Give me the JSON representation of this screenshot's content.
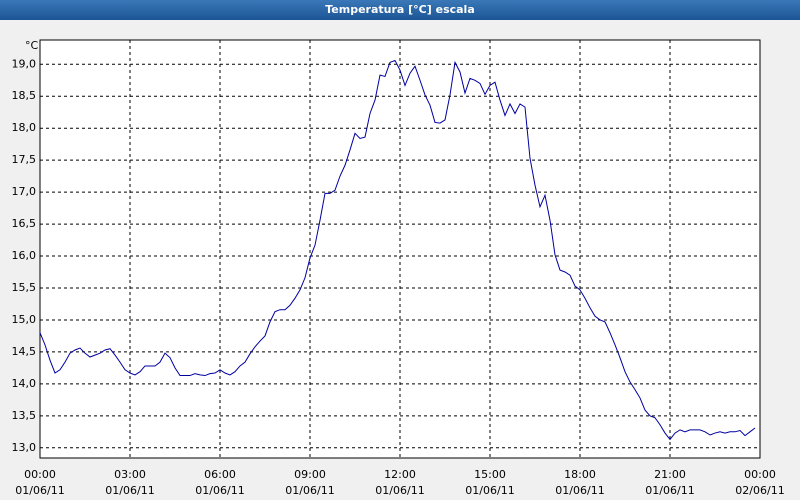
{
  "window_title": "Temperatura [°C] escala",
  "chart_data": {
    "type": "line",
    "y_unit": "°C",
    "x": [
      0,
      10,
      20,
      30,
      40,
      50,
      60,
      70,
      80,
      90,
      100,
      110,
      120,
      130,
      140,
      150,
      160,
      170,
      180,
      190,
      200,
      210,
      220,
      230,
      240,
      250,
      260,
      270,
      280,
      290,
      300,
      310,
      320,
      330,
      340,
      350,
      360,
      370,
      380,
      390,
      400,
      410,
      420,
      430,
      440,
      450,
      460,
      470,
      480,
      490,
      500,
      510,
      520,
      530,
      540,
      550,
      560,
      570,
      580,
      590,
      600,
      610,
      620,
      630,
      640,
      650,
      660,
      670,
      680,
      690,
      700,
      710,
      720,
      730,
      740,
      750,
      760,
      770,
      780,
      790,
      800,
      810,
      820,
      830,
      840,
      850,
      860,
      870,
      880,
      890,
      900,
      910,
      920,
      930,
      940,
      950,
      960,
      970,
      980,
      990,
      1000,
      1010,
      1020,
      1030,
      1040,
      1050,
      1060,
      1070,
      1080,
      1090,
      1100,
      1110,
      1120,
      1130,
      1140,
      1150,
      1160,
      1170,
      1180,
      1190,
      1200,
      1210,
      1220,
      1230,
      1240,
      1250,
      1260,
      1270,
      1280,
      1290,
      1300,
      1310,
      1320,
      1330,
      1340,
      1350,
      1360,
      1370,
      1380,
      1390,
      1400,
      1410,
      1420,
      1430
    ],
    "series": [
      {
        "color": "#0000a0",
        "values": [
          14.8,
          14.61,
          14.37,
          14.17,
          14.22,
          14.34,
          14.48,
          14.53,
          14.56,
          14.48,
          14.42,
          14.45,
          14.48,
          14.53,
          14.55,
          14.45,
          14.34,
          14.22,
          14.17,
          14.14,
          14.19,
          14.28,
          14.28,
          14.28,
          14.34,
          14.48,
          14.41,
          14.25,
          14.13,
          14.13,
          14.13,
          14.16,
          14.14,
          14.13,
          14.16,
          14.17,
          14.22,
          14.17,
          14.14,
          14.19,
          14.28,
          14.34,
          14.47,
          14.58,
          14.67,
          14.75,
          14.97,
          15.13,
          15.16,
          15.16,
          15.23,
          15.34,
          15.47,
          15.66,
          15.97,
          16.17,
          16.56,
          16.98,
          16.98,
          17.03,
          17.25,
          17.42,
          17.66,
          17.92,
          17.84,
          17.86,
          18.23,
          18.44,
          18.83,
          18.81,
          19.03,
          19.06,
          18.91,
          18.67,
          18.86,
          18.97,
          18.75,
          18.52,
          18.36,
          18.09,
          18.08,
          18.13,
          18.52,
          19.03,
          18.88,
          18.55,
          18.78,
          18.75,
          18.7,
          18.53,
          18.67,
          18.72,
          18.44,
          18.2,
          18.38,
          18.23,
          18.38,
          18.33,
          17.53,
          17.11,
          16.77,
          16.95,
          16.56,
          16.02,
          15.78,
          15.75,
          15.7,
          15.53,
          15.47,
          15.34,
          15.19,
          15.06,
          15.0,
          14.97,
          14.8,
          14.61,
          14.41,
          14.19,
          14.03,
          13.91,
          13.78,
          13.59,
          13.5,
          13.47,
          13.36,
          13.23,
          13.13,
          13.23,
          13.28,
          13.25,
          13.28,
          13.28,
          13.28,
          13.25,
          13.2,
          13.23,
          13.25,
          13.23,
          13.25,
          13.25,
          13.27,
          13.19,
          13.25,
          13.31
        ]
      }
    ],
    "xlim": [
      0,
      1440
    ],
    "xticks": [
      {
        "value": 0,
        "label": "00:00",
        "date": "01/06/11"
      },
      {
        "value": 180,
        "label": "03:00",
        "date": "01/06/11"
      },
      {
        "value": 360,
        "label": "06:00",
        "date": "01/06/11"
      },
      {
        "value": 540,
        "label": "09:00",
        "date": "01/06/11"
      },
      {
        "value": 720,
        "label": "12:00",
        "date": "01/06/11"
      },
      {
        "value": 900,
        "label": "15:00",
        "date": "01/06/11"
      },
      {
        "value": 1080,
        "label": "18:00",
        "date": "01/06/11"
      },
      {
        "value": 1260,
        "label": "21:00",
        "date": "01/06/11"
      },
      {
        "value": 1440,
        "label": "00:00",
        "date": "02/06/11"
      }
    ],
    "ylim": [
      12.84,
      19.38
    ],
    "yticks": [
      {
        "value": 13,
        "label": "13,0"
      },
      {
        "value": 13.5,
        "label": "13,5"
      },
      {
        "value": 14,
        "label": "14,0"
      },
      {
        "value": 14.5,
        "label": "14,5"
      },
      {
        "value": 15,
        "label": "15,0"
      },
      {
        "value": 15.5,
        "label": "15,5"
      },
      {
        "value": 16,
        "label": "16,0"
      },
      {
        "value": 16.5,
        "label": "16,5"
      },
      {
        "value": 17,
        "label": "17,0"
      },
      {
        "value": 17.5,
        "label": "17,5"
      },
      {
        "value": 18,
        "label": "18,0"
      },
      {
        "value": 18.5,
        "label": "18,5"
      },
      {
        "value": 19,
        "label": "19,0"
      }
    ],
    "grid": true
  }
}
